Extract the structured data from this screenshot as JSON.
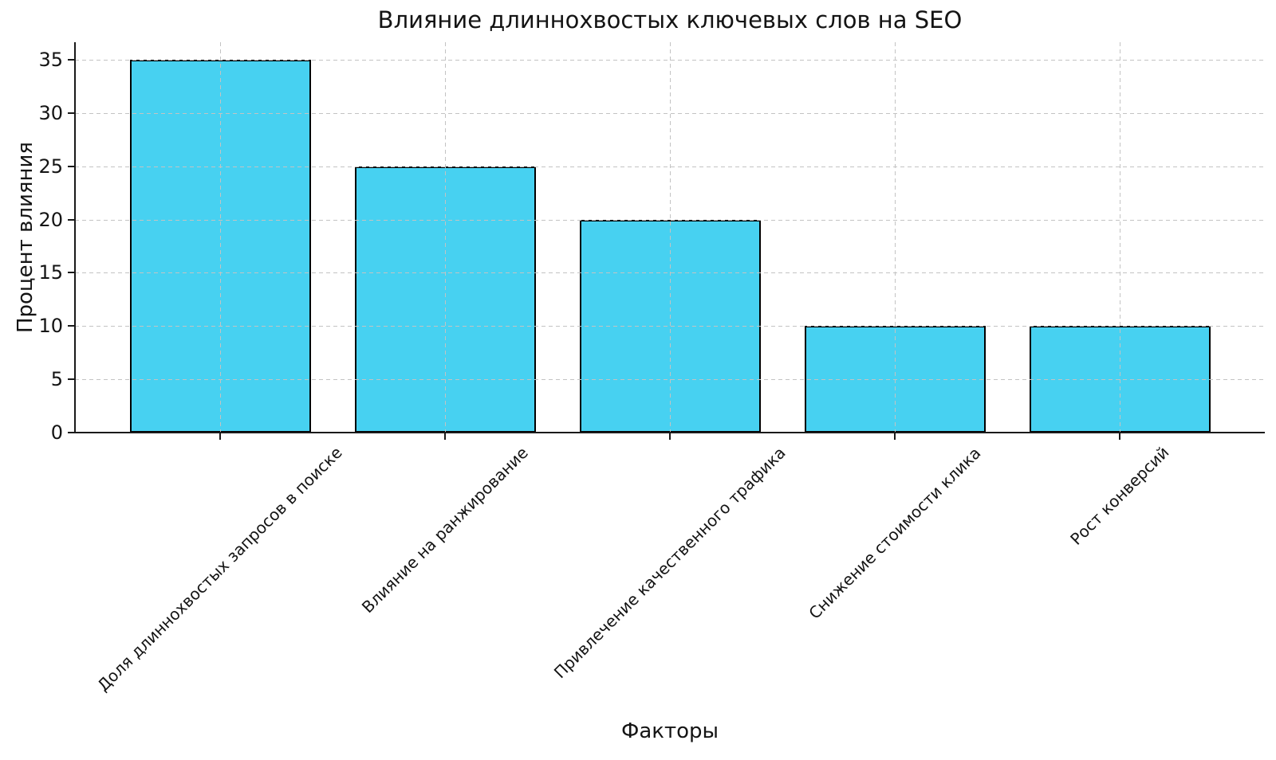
{
  "chart_data": {
    "type": "bar",
    "title": "Влияние длиннохвостых ключевых слов на SEO",
    "xlabel": "Факторы",
    "ylabel": "Процент влияния",
    "categories": [
      "Доля длиннохвостых запросов в поиске",
      "Влияние на ранжирование",
      "Привлечение качественного трафика",
      "Снижение стоимости клика",
      "Рост конверсий"
    ],
    "values": [
      35,
      25,
      20,
      10,
      10
    ],
    "yticks": [
      0,
      5,
      10,
      15,
      20,
      25,
      30,
      35
    ],
    "ylim": [
      0,
      36.65
    ],
    "xtick_rotation_deg": 45,
    "grid": true,
    "grid_style": "dashed",
    "grid_color": "#c3c3c3",
    "bar_color": "#47d1f1",
    "bar_edge_color": "#000000",
    "background": "#ffffff",
    "text_color": "#141414",
    "legend_position": "none"
  }
}
